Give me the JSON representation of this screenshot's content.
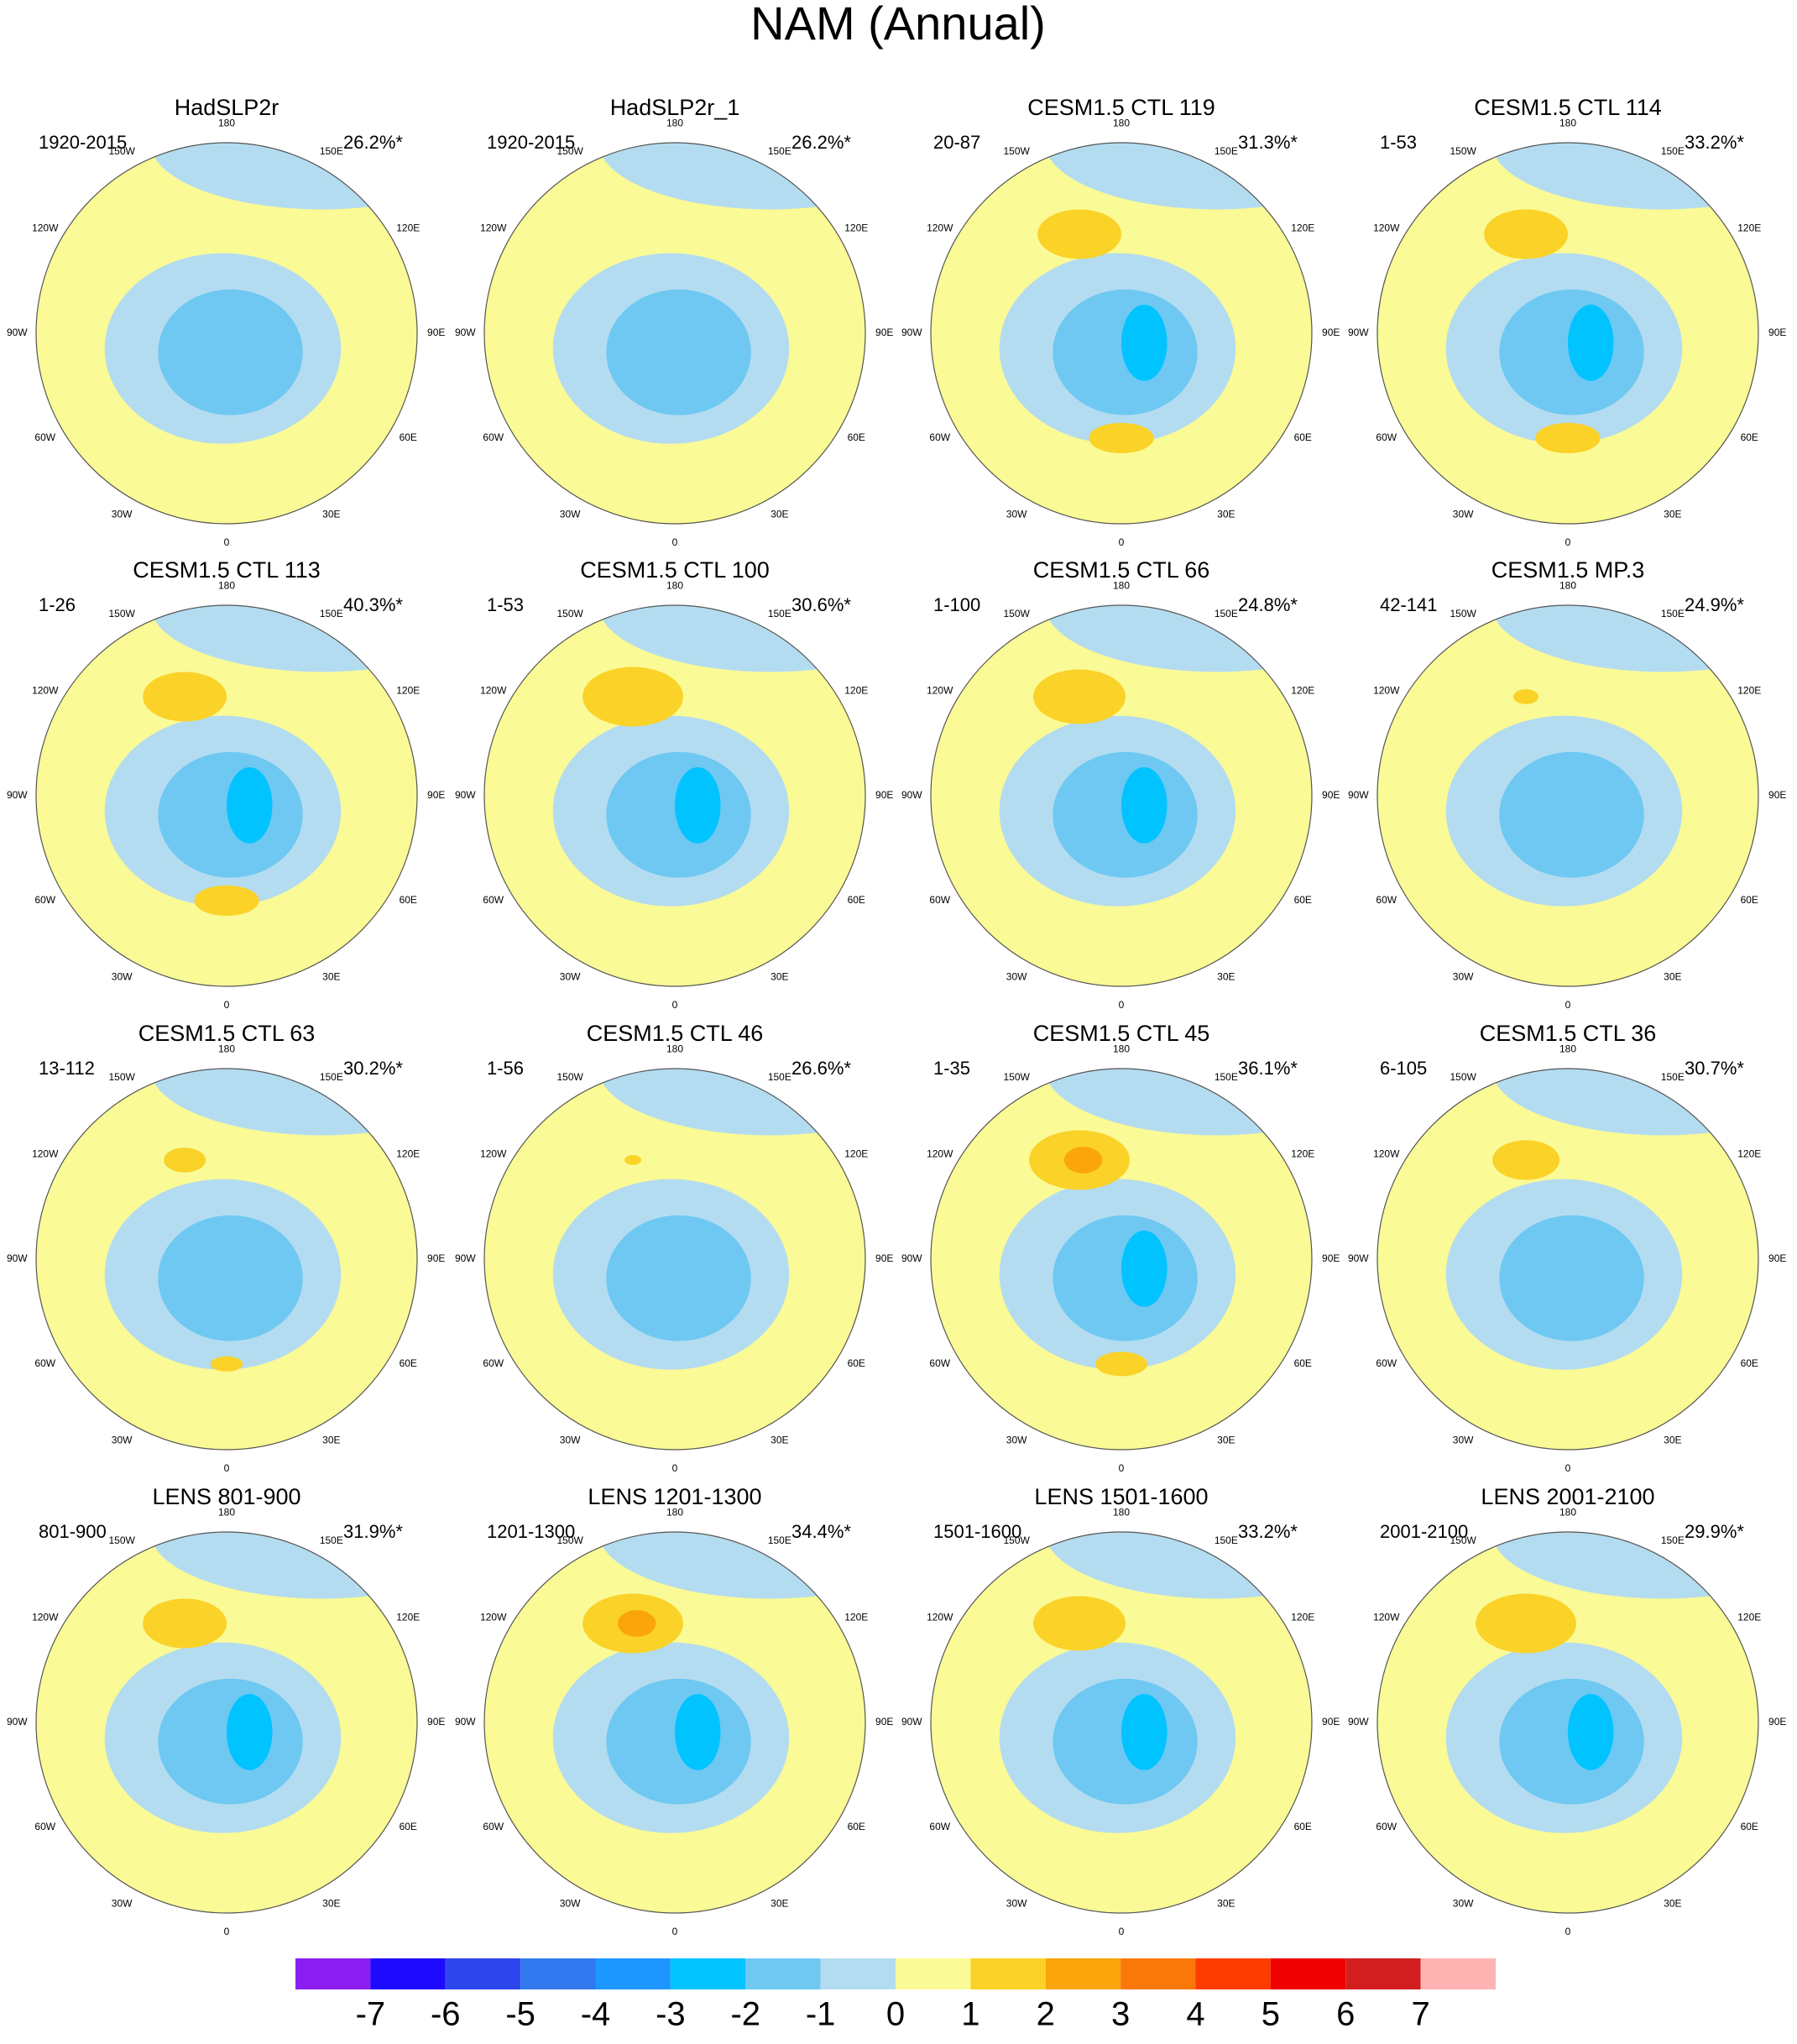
{
  "title": "NAM (Annual)",
  "panels": [
    {
      "title": "HadSLP2r",
      "period": "1920-2015",
      "percent": "26.2%*"
    },
    {
      "title": "HadSLP2r_1",
      "period": "1920-2015",
      "percent": "26.2%*"
    },
    {
      "title": "CESM1.5 CTL 119",
      "period": "20-87",
      "percent": "31.3%*"
    },
    {
      "title": "CESM1.5 CTL 114",
      "period": "1-53",
      "percent": "33.2%*"
    },
    {
      "title": "CESM1.5 CTL 113",
      "period": "1-26",
      "percent": "40.3%*"
    },
    {
      "title": "CESM1.5 CTL 100",
      "period": "1-53",
      "percent": "30.6%*"
    },
    {
      "title": "CESM1.5 CTL 66",
      "period": "1-100",
      "percent": "24.8%*"
    },
    {
      "title": "CESM1.5 MP.3",
      "period": "42-141",
      "percent": "24.9%*"
    },
    {
      "title": "CESM1.5 CTL 63",
      "period": "13-112",
      "percent": "30.2%*"
    },
    {
      "title": "CESM1.5 CTL 46",
      "period": "1-56",
      "percent": "26.6%*"
    },
    {
      "title": "CESM1.5 CTL 45",
      "period": "1-35",
      "percent": "36.1%*"
    },
    {
      "title": "CESM1.5 CTL 36",
      "period": "6-105",
      "percent": "30.7%*"
    },
    {
      "title": "LENS 801-900",
      "period": "801-900",
      "percent": "31.9%*"
    },
    {
      "title": "LENS 1201-1300",
      "period": "1201-1300",
      "percent": "34.4%*"
    },
    {
      "title": "LENS 1501-1600",
      "period": "1501-1600",
      "percent": "33.2%*"
    },
    {
      "title": "LENS 2001-2100",
      "period": "2001-2100",
      "percent": "29.9%*"
    }
  ],
  "lon_labels": [
    "0",
    "30E",
    "60E",
    "90E",
    "120E",
    "150E",
    "180",
    "150W",
    "120W",
    "90W",
    "60W",
    "30W"
  ],
  "colorbar": {
    "levels": [
      -7,
      -6,
      -5,
      -4,
      -3,
      -2,
      -1,
      0,
      1,
      2,
      3,
      4,
      5,
      6,
      7
    ],
    "colors": [
      "#8a1ef0",
      "#1e0aff",
      "#2d46ee",
      "#3278ee",
      "#1e96ff",
      "#00c3ff",
      "#6ec8f2",
      "#b4dcf0",
      "#fafa96",
      "#fad228",
      "#faa50a",
      "#fa780a",
      "#ff3c00",
      "#f00000",
      "#d21e1e",
      "#ffb4b4"
    ]
  }
}
